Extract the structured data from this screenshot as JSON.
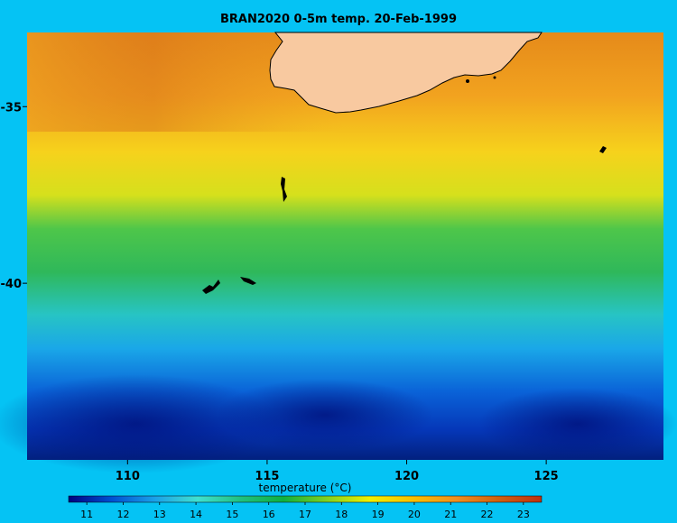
{
  "title": "BRAN2020 0-5m temp. 20-Feb-1999",
  "map": {
    "x_ticks": [
      {
        "lon": 110,
        "label": "110"
      },
      {
        "lon": 115,
        "label": "115"
      },
      {
        "lon": 120,
        "label": "120"
      },
      {
        "lon": 125,
        "label": "125"
      }
    ],
    "y_ticks": [
      {
        "lat": -35,
        "label": "-35"
      },
      {
        "lat": -40,
        "label": "-40"
      }
    ],
    "land_color": "#f8c9a0",
    "ocean_background_color": "#05c3f4"
  },
  "colorbar": {
    "title": "temperature (°C)",
    "min": 10.5,
    "max": 23.5,
    "tick_values": [
      11,
      12,
      13,
      14,
      15,
      16,
      17,
      18,
      19,
      20,
      21,
      22,
      23
    ],
    "colors": [
      "#00007f",
      "#0050d0",
      "#1aa0e8",
      "#40e0d0",
      "#20c080",
      "#10b040",
      "#80d020",
      "#f0f000",
      "#f8c000",
      "#f09020",
      "#d06010",
      "#c03010"
    ]
  }
}
